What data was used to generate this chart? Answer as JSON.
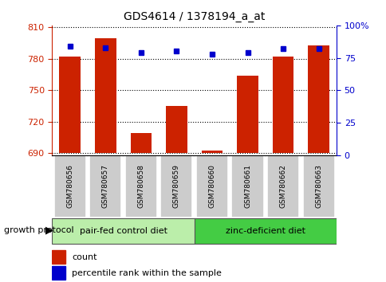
{
  "title": "GDS4614 / 1378194_a_at",
  "samples": [
    "GSM780656",
    "GSM780657",
    "GSM780658",
    "GSM780659",
    "GSM780660",
    "GSM780661",
    "GSM780662",
    "GSM780663"
  ],
  "counts": [
    782,
    800,
    709,
    735,
    692,
    764,
    782,
    793
  ],
  "percentiles": [
    84,
    83,
    79,
    80,
    78,
    79,
    82,
    82
  ],
  "ylim_left": [
    688,
    812
  ],
  "ylim_right": [
    0,
    100
  ],
  "yticks_left": [
    690,
    720,
    750,
    780,
    810
  ],
  "yticks_right": [
    0,
    25,
    50,
    75,
    100
  ],
  "bar_color": "#cc2200",
  "dot_color": "#0000cc",
  "bar_bottom": 690,
  "group1_label": "pair-fed control diet",
  "group2_label": "zinc-deficient diet",
  "group1_color": "#bbeeaa",
  "group2_color": "#44cc44",
  "group_label": "growth protocol",
  "legend_count": "count",
  "legend_pct": "percentile rank within the sample",
  "xticklabel_bg": "#cccccc",
  "bar_width": 0.6
}
